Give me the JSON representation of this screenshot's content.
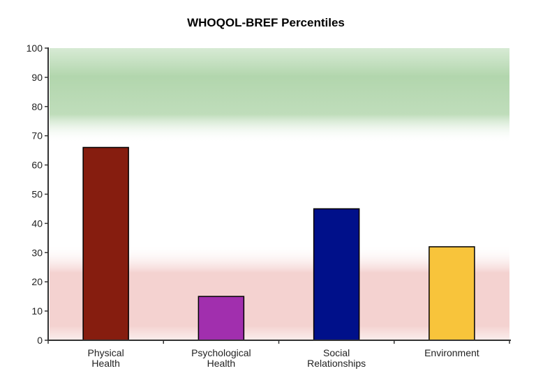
{
  "chart_data": {
    "type": "bar",
    "title": "WHOQOL-BREF Percentiles",
    "xlabel": "",
    "ylabel": "",
    "ylim": [
      0,
      100
    ],
    "yticks": [
      0,
      10,
      20,
      30,
      40,
      50,
      60,
      70,
      80,
      90,
      100
    ],
    "categories": [
      [
        "Physical",
        "Health"
      ],
      [
        "Psychological",
        "Health"
      ],
      [
        "Social",
        "Relationships"
      ],
      [
        "Environment"
      ]
    ],
    "values": [
      66,
      15,
      45,
      32
    ],
    "bar_colors": [
      "#861d0f",
      "#a12fae",
      "#00108a",
      "#f8c43b"
    ],
    "grid": false,
    "legend": "none",
    "bands": [
      {
        "name": "high range",
        "from": 70,
        "to": 100,
        "color": "#b2d6ad"
      },
      {
        "name": "low range",
        "from": 0,
        "to": 30,
        "color": "#f4d2d0"
      }
    ]
  }
}
